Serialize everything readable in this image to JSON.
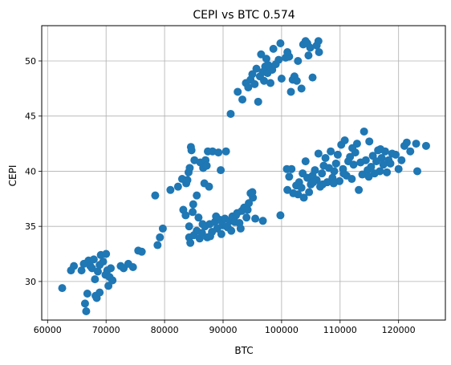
{
  "chart_data": {
    "type": "scatter",
    "title": "CEPI vs BTC  0.574",
    "xlabel": "BTC",
    "ylabel": "CEPI",
    "xlim": [
      59000,
      128000
    ],
    "ylim": [
      26.5,
      53.2
    ],
    "xticks": [
      60000,
      70000,
      80000,
      90000,
      100000,
      110000,
      120000
    ],
    "xtick_labels": [
      "60000",
      "70000",
      "80000",
      "90000",
      "100000",
      "110000",
      "120000"
    ],
    "yticks": [
      30,
      35,
      40,
      45,
      50
    ],
    "ytick_labels": [
      "30",
      "35",
      "40",
      "45",
      "50"
    ],
    "grid": true,
    "marker_color": "#1f77b4",
    "series": [
      {
        "points": [
          [
            62500,
            29.4
          ],
          [
            64000,
            31.0
          ],
          [
            64500,
            31.4
          ],
          [
            65800,
            31.0
          ],
          [
            66200,
            31.6
          ],
          [
            66400,
            28.0
          ],
          [
            66600,
            27.3
          ],
          [
            66800,
            28.9
          ],
          [
            67000,
            31.9
          ],
          [
            67300,
            31.4
          ],
          [
            67600,
            31.2
          ],
          [
            67900,
            32.0
          ],
          [
            68100,
            30.2
          ],
          [
            68200,
            28.7
          ],
          [
            68400,
            28.5
          ],
          [
            68600,
            30.9
          ],
          [
            68900,
            31.5
          ],
          [
            68900,
            29.0
          ],
          [
            69100,
            32.4
          ],
          [
            69500,
            31.8
          ],
          [
            69900,
            30.6
          ],
          [
            70000,
            32.5
          ],
          [
            70200,
            31.0
          ],
          [
            70400,
            29.6
          ],
          [
            70600,
            30.4
          ],
          [
            70800,
            31.2
          ],
          [
            71100,
            30.1
          ],
          [
            72500,
            31.4
          ],
          [
            73000,
            31.2
          ],
          [
            73800,
            31.6
          ],
          [
            74600,
            31.3
          ],
          [
            75500,
            32.8
          ],
          [
            76100,
            32.7
          ],
          [
            78400,
            37.8
          ],
          [
            78800,
            33.3
          ],
          [
            79200,
            34.0
          ],
          [
            79700,
            34.8
          ],
          [
            81000,
            38.3
          ],
          [
            82300,
            38.6
          ],
          [
            83000,
            39.3
          ],
          [
            83200,
            36.5
          ],
          [
            83600,
            36.0
          ],
          [
            83700,
            38.9
          ],
          [
            83900,
            39.2
          ],
          [
            84100,
            39.9
          ],
          [
            84200,
            35.0
          ],
          [
            84300,
            40.3
          ],
          [
            84500,
            42.2
          ],
          [
            84600,
            41.9
          ],
          [
            84800,
            36.3
          ],
          [
            84900,
            37.0
          ],
          [
            85100,
            41.0
          ],
          [
            85500,
            37.8
          ],
          [
            85800,
            35.8
          ],
          [
            86100,
            40.8
          ],
          [
            86600,
            40.3
          ],
          [
            86800,
            38.9
          ],
          [
            87000,
            41.0
          ],
          [
            87200,
            40.5
          ],
          [
            87400,
            41.8
          ],
          [
            87600,
            38.6
          ],
          [
            88200,
            41.8
          ],
          [
            89200,
            41.7
          ],
          [
            89600,
            40.1
          ],
          [
            90500,
            41.8
          ],
          [
            84200,
            34.0
          ],
          [
            84400,
            33.5
          ],
          [
            85000,
            34.2
          ],
          [
            85500,
            34.6
          ],
          [
            86000,
            33.9
          ],
          [
            86400,
            34.4
          ],
          [
            86900,
            35.0
          ],
          [
            87300,
            34.0
          ],
          [
            87700,
            35.2
          ],
          [
            88100,
            34.5
          ],
          [
            88600,
            35.4
          ],
          [
            89000,
            34.8
          ],
          [
            89400,
            35.6
          ],
          [
            89900,
            35.1
          ],
          [
            90300,
            35.7
          ],
          [
            90800,
            34.9
          ],
          [
            91200,
            35.5
          ],
          [
            91600,
            35.9
          ],
          [
            92000,
            35.4
          ],
          [
            92400,
            36.2
          ],
          [
            92800,
            35.3
          ],
          [
            93200,
            36.4
          ],
          [
            93600,
            36.7
          ],
          [
            94000,
            35.8
          ],
          [
            94400,
            37.1
          ],
          [
            94700,
            38.0
          ],
          [
            95100,
            37.6
          ],
          [
            95500,
            35.7
          ],
          [
            96800,
            35.5
          ],
          [
            99800,
            36.0
          ],
          [
            86500,
            35.2
          ],
          [
            87800,
            34.1
          ],
          [
            88800,
            35.9
          ],
          [
            89700,
            34.3
          ],
          [
            90600,
            35.0
          ],
          [
            91400,
            34.6
          ],
          [
            92200,
            36.0
          ],
          [
            93000,
            34.8
          ],
          [
            94200,
            36.5
          ],
          [
            95000,
            38.1
          ],
          [
            91300,
            45.2
          ],
          [
            92500,
            47.2
          ],
          [
            93300,
            46.5
          ],
          [
            93900,
            48.0
          ],
          [
            94300,
            47.6
          ],
          [
            94700,
            48.3
          ],
          [
            95000,
            48.8
          ],
          [
            95400,
            47.9
          ],
          [
            95700,
            49.3
          ],
          [
            96000,
            46.3
          ],
          [
            96300,
            48.6
          ],
          [
            96500,
            50.6
          ],
          [
            96800,
            49.0
          ],
          [
            97000,
            48.2
          ],
          [
            97200,
            49.5
          ],
          [
            97400,
            50.2
          ],
          [
            97600,
            48.9
          ],
          [
            97800,
            49.6
          ],
          [
            98100,
            48.0
          ],
          [
            98400,
            49.2
          ],
          [
            98600,
            51.1
          ],
          [
            99000,
            49.7
          ],
          [
            99500,
            50.1
          ],
          [
            99800,
            51.6
          ],
          [
            100000,
            48.4
          ],
          [
            100700,
            50.3
          ],
          [
            101300,
            50.4
          ],
          [
            101600,
            47.2
          ],
          [
            101900,
            48.3
          ],
          [
            102200,
            48.6
          ],
          [
            102600,
            48.2
          ],
          [
            102800,
            50.0
          ],
          [
            103400,
            47.5
          ],
          [
            103700,
            51.5
          ],
          [
            104100,
            51.8
          ],
          [
            104400,
            51.6
          ],
          [
            104900,
            51.2
          ],
          [
            105300,
            48.5
          ],
          [
            106000,
            51.4
          ],
          [
            106300,
            51.8
          ],
          [
            106400,
            50.8
          ],
          [
            104600,
            50.5
          ],
          [
            101000,
            50.8
          ],
          [
            101000,
            38.3
          ],
          [
            101300,
            39.5
          ],
          [
            101700,
            40.2
          ],
          [
            102500,
            38.7
          ],
          [
            102800,
            37.9
          ],
          [
            103000,
            39.0
          ],
          [
            103400,
            38.5
          ],
          [
            103800,
            37.6
          ],
          [
            104100,
            40.9
          ],
          [
            104400,
            39.4
          ],
          [
            104700,
            38.1
          ],
          [
            105000,
            38.8
          ],
          [
            105300,
            39.6
          ],
          [
            105700,
            40.1
          ],
          [
            106000,
            39.2
          ],
          [
            106300,
            41.6
          ],
          [
            106600,
            38.6
          ],
          [
            106900,
            39.8
          ],
          [
            107200,
            40.5
          ],
          [
            107500,
            41.2
          ],
          [
            107800,
            39.0
          ],
          [
            108100,
            40.3
          ],
          [
            108400,
            41.8
          ],
          [
            108700,
            39.4
          ],
          [
            109000,
            40.0
          ],
          [
            109300,
            40.7
          ],
          [
            109600,
            41.5
          ],
          [
            109900,
            39.1
          ],
          [
            110200,
            42.4
          ],
          [
            110500,
            40.2
          ],
          [
            110800,
            42.8
          ],
          [
            111100,
            39.6
          ],
          [
            111400,
            40.9
          ],
          [
            111700,
            41.3
          ],
          [
            112000,
            39.3
          ],
          [
            112300,
            40.6
          ],
          [
            112600,
            41.7
          ],
          [
            112900,
            42.5
          ],
          [
            113200,
            38.3
          ],
          [
            113500,
            40.8
          ],
          [
            113800,
            39.7
          ],
          [
            114100,
            43.6
          ],
          [
            114400,
            41.0
          ],
          [
            114700,
            40.1
          ],
          [
            115000,
            42.7
          ],
          [
            115300,
            40.4
          ],
          [
            115600,
            41.4
          ],
          [
            115900,
            39.8
          ],
          [
            116200,
            40.9
          ],
          [
            116500,
            41.9
          ],
          [
            116800,
            40.0
          ],
          [
            117100,
            41.2
          ],
          [
            117400,
            40.6
          ],
          [
            117700,
            41.8
          ],
          [
            118000,
            39.9
          ],
          [
            118300,
            41.0
          ],
          [
            118600,
            40.7
          ],
          [
            118900,
            41.6
          ],
          [
            119500,
            41.5
          ],
          [
            120000,
            40.2
          ],
          [
            120500,
            41.0
          ],
          [
            121000,
            42.3
          ],
          [
            121400,
            42.6
          ],
          [
            122000,
            41.8
          ],
          [
            123000,
            42.5
          ],
          [
            123200,
            40.0
          ],
          [
            124700,
            42.3
          ],
          [
            100900,
            40.2
          ],
          [
            102000,
            38.0
          ],
          [
            103600,
            39.8
          ],
          [
            105400,
            39.0
          ],
          [
            107000,
            38.8
          ],
          [
            108900,
            38.9
          ],
          [
            110600,
            39.8
          ],
          [
            112100,
            42.1
          ],
          [
            114900,
            39.5
          ],
          [
            116900,
            42.0
          ]
        ]
      }
    ]
  }
}
